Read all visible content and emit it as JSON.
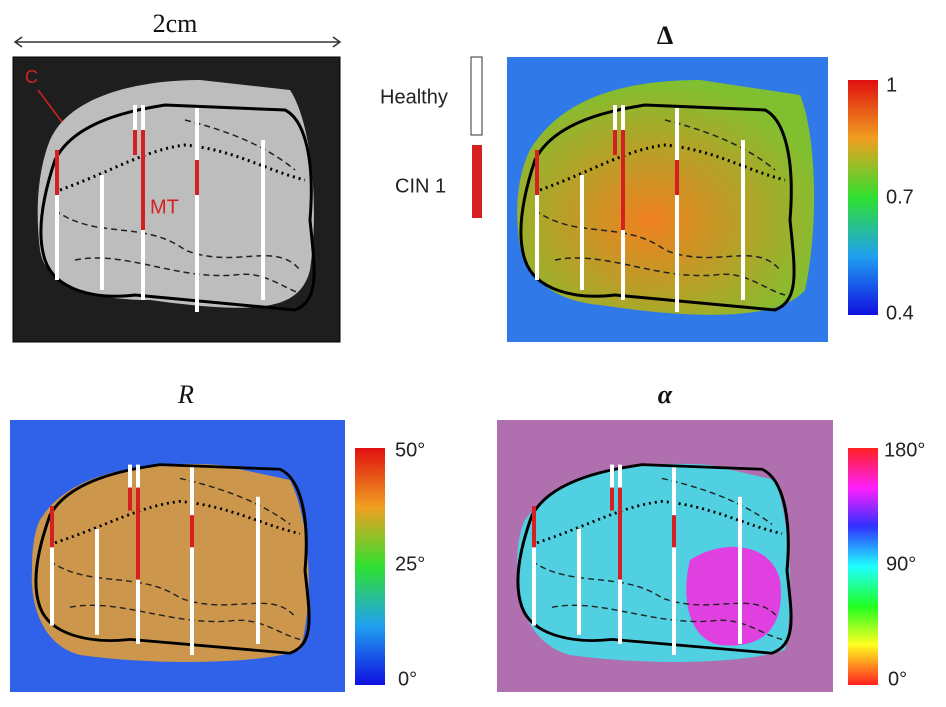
{
  "scale": {
    "label": "2cm"
  },
  "annotations": {
    "c": "C",
    "mt": "MT"
  },
  "legend": {
    "healthy": "Healthy",
    "cin": "CIN 1"
  },
  "panels": [
    {
      "title": "Δ",
      "colorbar": [
        "1",
        "0.7",
        "0.4"
      ]
    },
    {
      "title": "R",
      "colorbar": [
        "50°",
        "25°",
        "0°"
      ]
    },
    {
      "title": "α",
      "colorbar": [
        "180°",
        "90°",
        "0°"
      ]
    }
  ]
}
